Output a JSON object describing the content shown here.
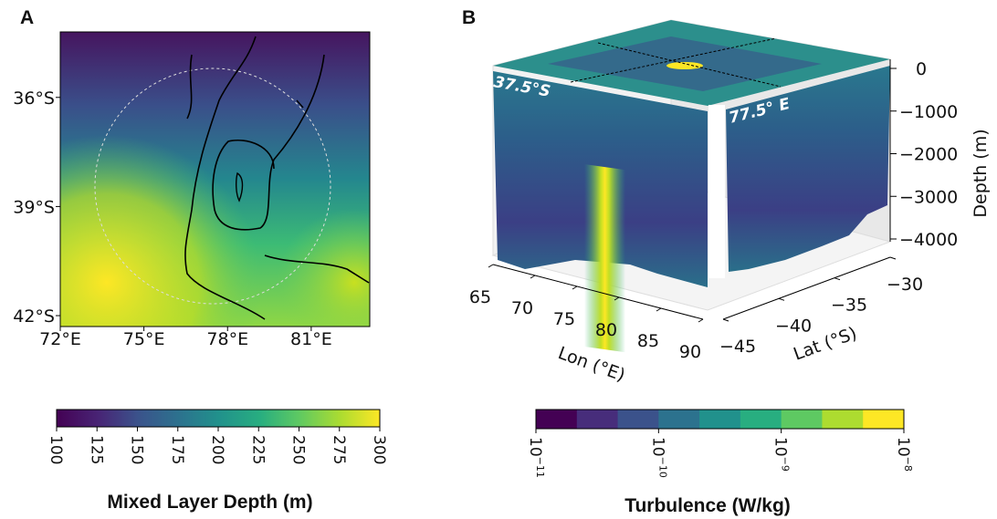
{
  "panel_a": {
    "label": "A",
    "x_ticks": [
      {
        "value": 72,
        "label": "72°E"
      },
      {
        "value": 75,
        "label": "75°E"
      },
      {
        "value": 78,
        "label": "78°E"
      },
      {
        "value": 81,
        "label": "81°E"
      }
    ],
    "xlim": [
      72,
      83.1
    ],
    "y_ticks": [
      {
        "value": -36,
        "label": "36°S"
      },
      {
        "value": -39,
        "label": "39°S"
      },
      {
        "value": -42,
        "label": "42°S"
      }
    ],
    "ylim": [
      -34.2,
      -42.3
    ],
    "colorbar": {
      "label": "Mixed Layer Depth (m)",
      "lim": [
        100,
        300
      ],
      "ticks": [
        100,
        125,
        150,
        175,
        200,
        225,
        250,
        275,
        300
      ]
    }
  },
  "panel_b": {
    "label": "B",
    "section_labels": [
      "37.5°S",
      "77.5° E"
    ],
    "lon_label": "Lon (°E)",
    "lat_label": "Lat (°S)",
    "depth_label": "Depth (m)",
    "lon_ticks": [
      65,
      70,
      75,
      80,
      85,
      90
    ],
    "lonlim": [
      65,
      90
    ],
    "lat_ticks": [
      {
        "value": -30,
        "label": "−30"
      },
      {
        "value": -35,
        "label": "−35"
      },
      {
        "value": -40,
        "label": "−40"
      },
      {
        "value": -45,
        "label": "−45"
      }
    ],
    "latlim": [
      -30,
      -45
    ],
    "depth_ticks": [
      0,
      {
        "value": -1000,
        "label": "−1000"
      },
      {
        "value": -2000,
        "label": "−2000"
      },
      {
        "value": -3000,
        "label": "−3000"
      },
      {
        "value": -4000,
        "label": "−4000"
      }
    ],
    "depthlim": [
      0,
      -4000
    ],
    "colorbar": {
      "label": "Turbulence (W/kg)",
      "log": true,
      "lim": [
        1e-11,
        1e-08
      ],
      "ticks": [
        {
          "value": 1e-11,
          "base": "10",
          "exponent": "−11"
        },
        {
          "value": 1e-10,
          "base": "10",
          "exponent": "−10"
        },
        {
          "value": 1e-09,
          "base": "10",
          "exponent": "−9"
        },
        {
          "value": 1e-08,
          "base": "10",
          "exponent": "−8"
        }
      ]
    }
  }
}
